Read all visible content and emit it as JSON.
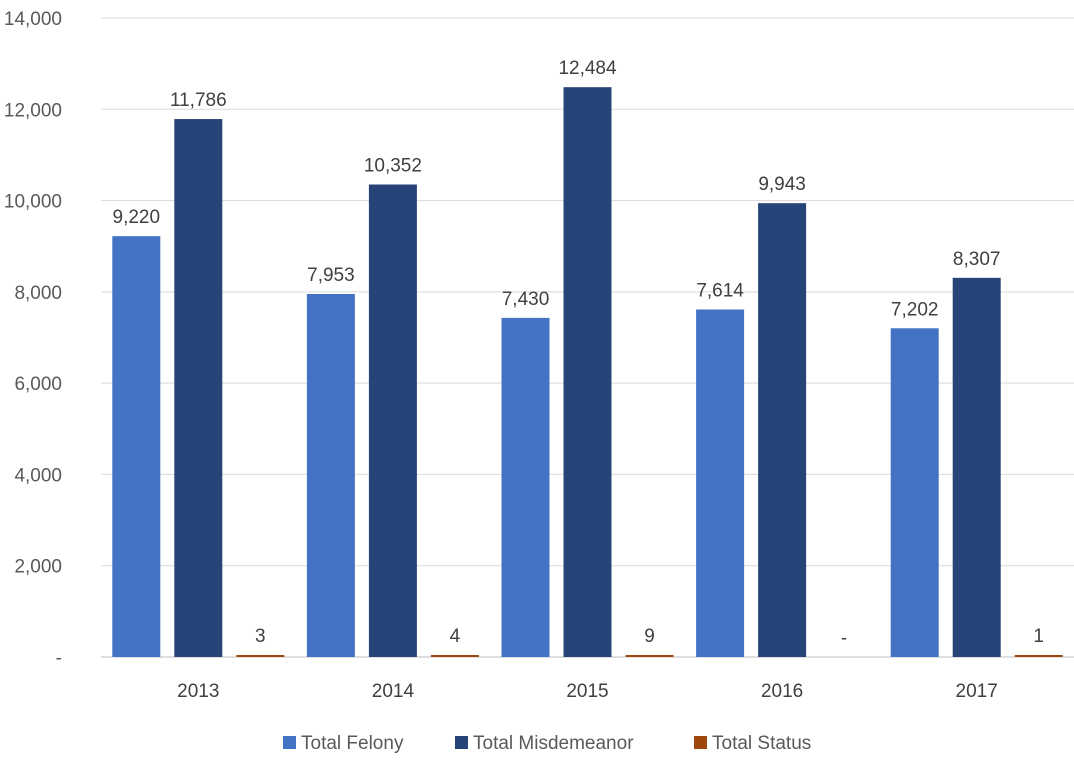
{
  "chart_data": {
    "type": "bar",
    "title": "",
    "xlabel": "",
    "ylabel": "",
    "categories": [
      "2013",
      "2014",
      "2015",
      "2016",
      "2017"
    ],
    "series": [
      {
        "name": "Total Felony",
        "values": [
          9220,
          7953,
          7430,
          7614,
          7202
        ],
        "labels": [
          "9,220",
          "7,953",
          "7,430",
          "7,614",
          "7,202"
        ],
        "color": "#4472c4"
      },
      {
        "name": "Total Misdemeanor",
        "values": [
          11786,
          10352,
          12484,
          9943,
          8307
        ],
        "labels": [
          "11,786",
          "10,352",
          "12,484",
          "9,943",
          "8,307"
        ],
        "color": "#264478"
      },
      {
        "name": "Total Status",
        "values": [
          3,
          4,
          9,
          0,
          1
        ],
        "labels": [
          "3",
          "4",
          "9",
          "-",
          "1"
        ],
        "color": "#9e480e"
      }
    ],
    "ylim": [
      0,
      14000
    ],
    "yticks": [
      0,
      2000,
      4000,
      6000,
      8000,
      10000,
      12000,
      14000
    ],
    "ytick_labels": [
      "-",
      "2,000",
      "4,000",
      "6,000",
      "8,000",
      "10,000",
      "12,000",
      "14,000"
    ],
    "grid": true,
    "legend": "bottom"
  }
}
